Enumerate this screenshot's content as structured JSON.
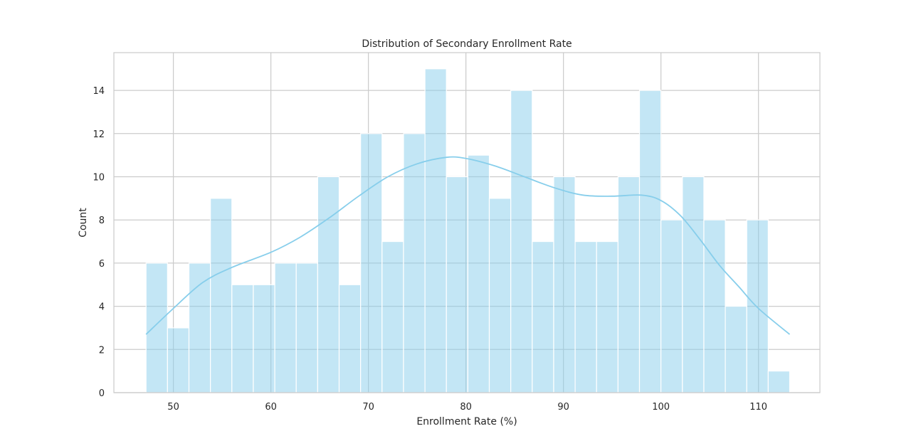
{
  "chart_data": {
    "type": "bar",
    "title": "Distribution of Secondary Enrollment Rate",
    "xlabel": "Enrollment Rate (%)",
    "ylabel": "Count",
    "xlim": [
      43.9,
      116.3
    ],
    "ylim": [
      0,
      15.75
    ],
    "xticks": [
      50,
      60,
      70,
      80,
      90,
      100,
      110
    ],
    "yticks": [
      0,
      2,
      4,
      6,
      8,
      10,
      12,
      14
    ],
    "grid": true,
    "legend": "none",
    "bins": {
      "start": 47.2,
      "width": 2.2,
      "counts": [
        6,
        3,
        6,
        9,
        5,
        5,
        6,
        6,
        10,
        5,
        12,
        7,
        12,
        15,
        10,
        11,
        9,
        14,
        7,
        10,
        7,
        7,
        10,
        14,
        8,
        10,
        8,
        4,
        8,
        1
      ]
    },
    "kde": {
      "x": [
        47.2,
        50,
        53,
        56,
        60,
        63,
        66,
        69,
        72,
        75,
        78,
        80,
        83,
        86,
        89,
        92,
        95,
        98,
        100,
        102,
        104,
        106,
        108,
        110,
        113.2
      ],
      "y": [
        2.7,
        3.9,
        5.1,
        5.8,
        6.5,
        7.2,
        8.1,
        9.1,
        10.0,
        10.6,
        10.9,
        10.85,
        10.5,
        10.0,
        9.5,
        9.15,
        9.1,
        9.15,
        8.9,
        8.2,
        7.1,
        5.9,
        4.9,
        3.9,
        2.7
      ]
    },
    "colors": {
      "bar_fill": "#87ceeb",
      "bar_opacity": 0.5,
      "kde_line": "#87ceeb",
      "grid": "#cccccc",
      "axes": "#cccccc"
    }
  }
}
